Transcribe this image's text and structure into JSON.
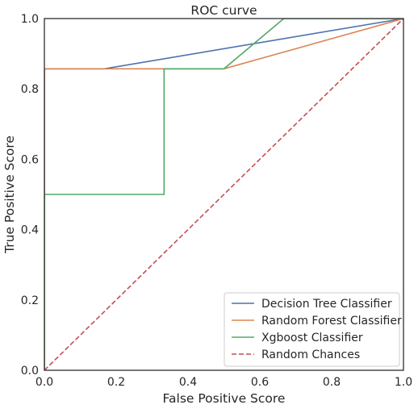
{
  "chart_data": {
    "type": "line",
    "title": "ROC curve",
    "xlabel": "False Positive Score",
    "ylabel": "True Positive Score",
    "xlim": [
      0,
      1
    ],
    "ylim": [
      0,
      1
    ],
    "x_ticks": [
      "0.0",
      "0.2",
      "0.4",
      "0.6",
      "0.8",
      "1.0"
    ],
    "y_ticks": [
      "0.0",
      "0.2",
      "0.4",
      "0.6",
      "0.8",
      "1.0"
    ],
    "grid": false,
    "legend_position": "lower-right",
    "series": [
      {
        "name": "Decision Tree Classifier",
        "color": "#4c72b0",
        "style": "solid",
        "x": [
          0.0,
          0.0,
          0.1667,
          1.0
        ],
        "y": [
          0.0,
          0.8571,
          0.8571,
          1.0
        ]
      },
      {
        "name": "Random Forest Classifier",
        "color": "#dd8452",
        "style": "solid",
        "x": [
          0.0,
          0.0,
          0.5,
          1.0
        ],
        "y": [
          0.0,
          0.8571,
          0.8571,
          1.0
        ]
      },
      {
        "name": "Xgboost Classifier",
        "color": "#55a868",
        "style": "solid",
        "x": [
          0.0,
          0.0,
          0.3333,
          0.3333,
          0.5,
          0.6667,
          1.0
        ],
        "y": [
          0.0,
          0.5,
          0.5,
          0.8571,
          0.8571,
          1.0,
          1.0
        ]
      },
      {
        "name": "Random Chances",
        "color": "#c44e52",
        "style": "dashed",
        "x": [
          0.0,
          1.0
        ],
        "y": [
          0.0,
          1.0
        ]
      }
    ]
  }
}
